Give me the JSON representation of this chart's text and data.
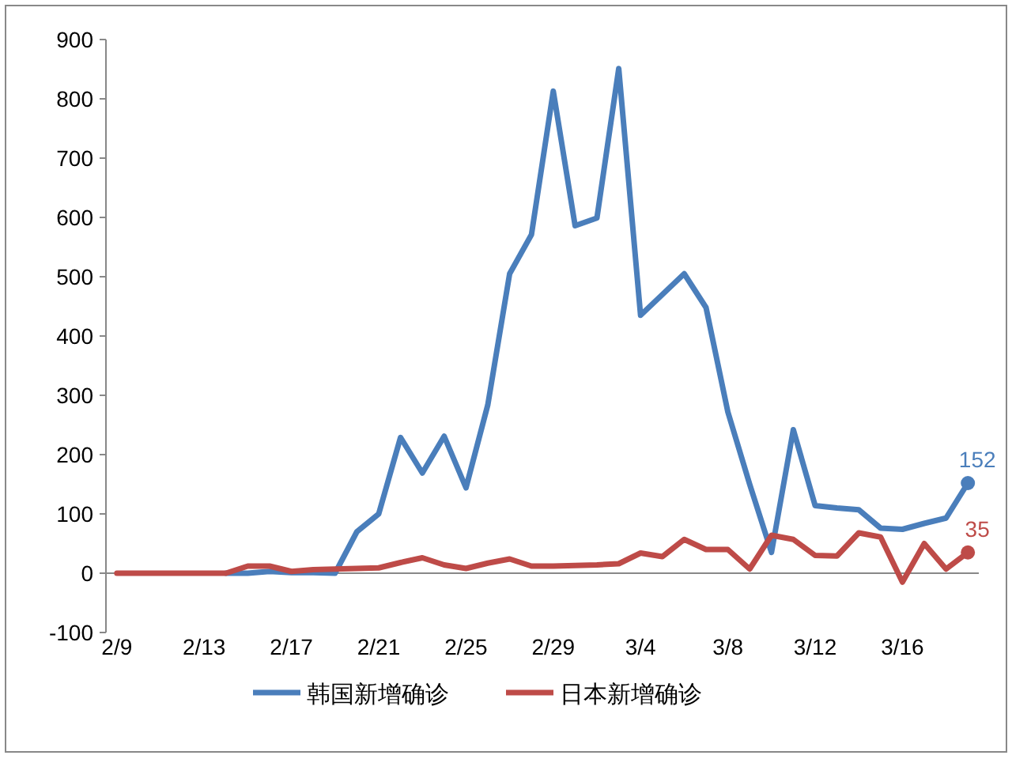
{
  "chart_data": {
    "type": "line",
    "categories": [
      "2/9",
      null,
      null,
      null,
      "2/13",
      null,
      null,
      null,
      "2/17",
      null,
      null,
      null,
      "2/21",
      null,
      null,
      null,
      "2/25",
      null,
      null,
      null,
      "2/29",
      null,
      null,
      null,
      "3/4",
      null,
      null,
      null,
      "3/8",
      null,
      null,
      null,
      "3/12",
      null,
      null,
      null,
      "3/16",
      null,
      null,
      null
    ],
    "series": [
      {
        "name": "韩国新增确诊",
        "color": "#4a7ebb",
        "values": [
          null,
          null,
          null,
          null,
          null,
          0,
          0,
          3,
          1,
          1,
          0,
          70,
          100,
          229,
          169,
          231,
          144,
          284,
          505,
          571,
          813,
          586,
          599,
          851,
          435,
          470,
          505,
          448,
          272,
          150,
          35,
          242,
          114,
          110,
          107,
          76,
          74,
          84,
          93,
          152
        ],
        "value_labels": [
          null,
          null,
          null,
          null,
          null,
          null,
          null,
          null,
          null,
          null,
          null,
          null,
          null,
          null,
          null,
          null,
          null,
          null,
          null,
          null,
          null,
          null,
          null,
          null,
          null,
          null,
          null,
          null,
          null,
          null,
          null,
          null,
          null,
          null,
          null,
          null,
          null,
          null,
          null,
          "152"
        ]
      },
      {
        "name": "日本新增确诊",
        "color": "#be4b48",
        "values": [
          0,
          0,
          0,
          0,
          0,
          0,
          12,
          12,
          3,
          6,
          7,
          8,
          9,
          18,
          26,
          14,
          8,
          17,
          24,
          12,
          12,
          13,
          14,
          16,
          34,
          28,
          57,
          40,
          40,
          7,
          64,
          57,
          30,
          29,
          68,
          61,
          -15,
          50,
          7,
          35
        ],
        "value_labels": [
          null,
          null,
          null,
          null,
          null,
          null,
          null,
          null,
          null,
          null,
          null,
          null,
          null,
          null,
          null,
          null,
          null,
          null,
          null,
          null,
          null,
          null,
          null,
          null,
          null,
          null,
          null,
          null,
          null,
          null,
          null,
          null,
          null,
          null,
          null,
          null,
          null,
          null,
          null,
          "35"
        ]
      }
    ],
    "ylim": [
      -100,
      900
    ],
    "yticks": [
      -100,
      0,
      100,
      200,
      300,
      400,
      500,
      600,
      700,
      800,
      900
    ],
    "legend": "bottom"
  }
}
